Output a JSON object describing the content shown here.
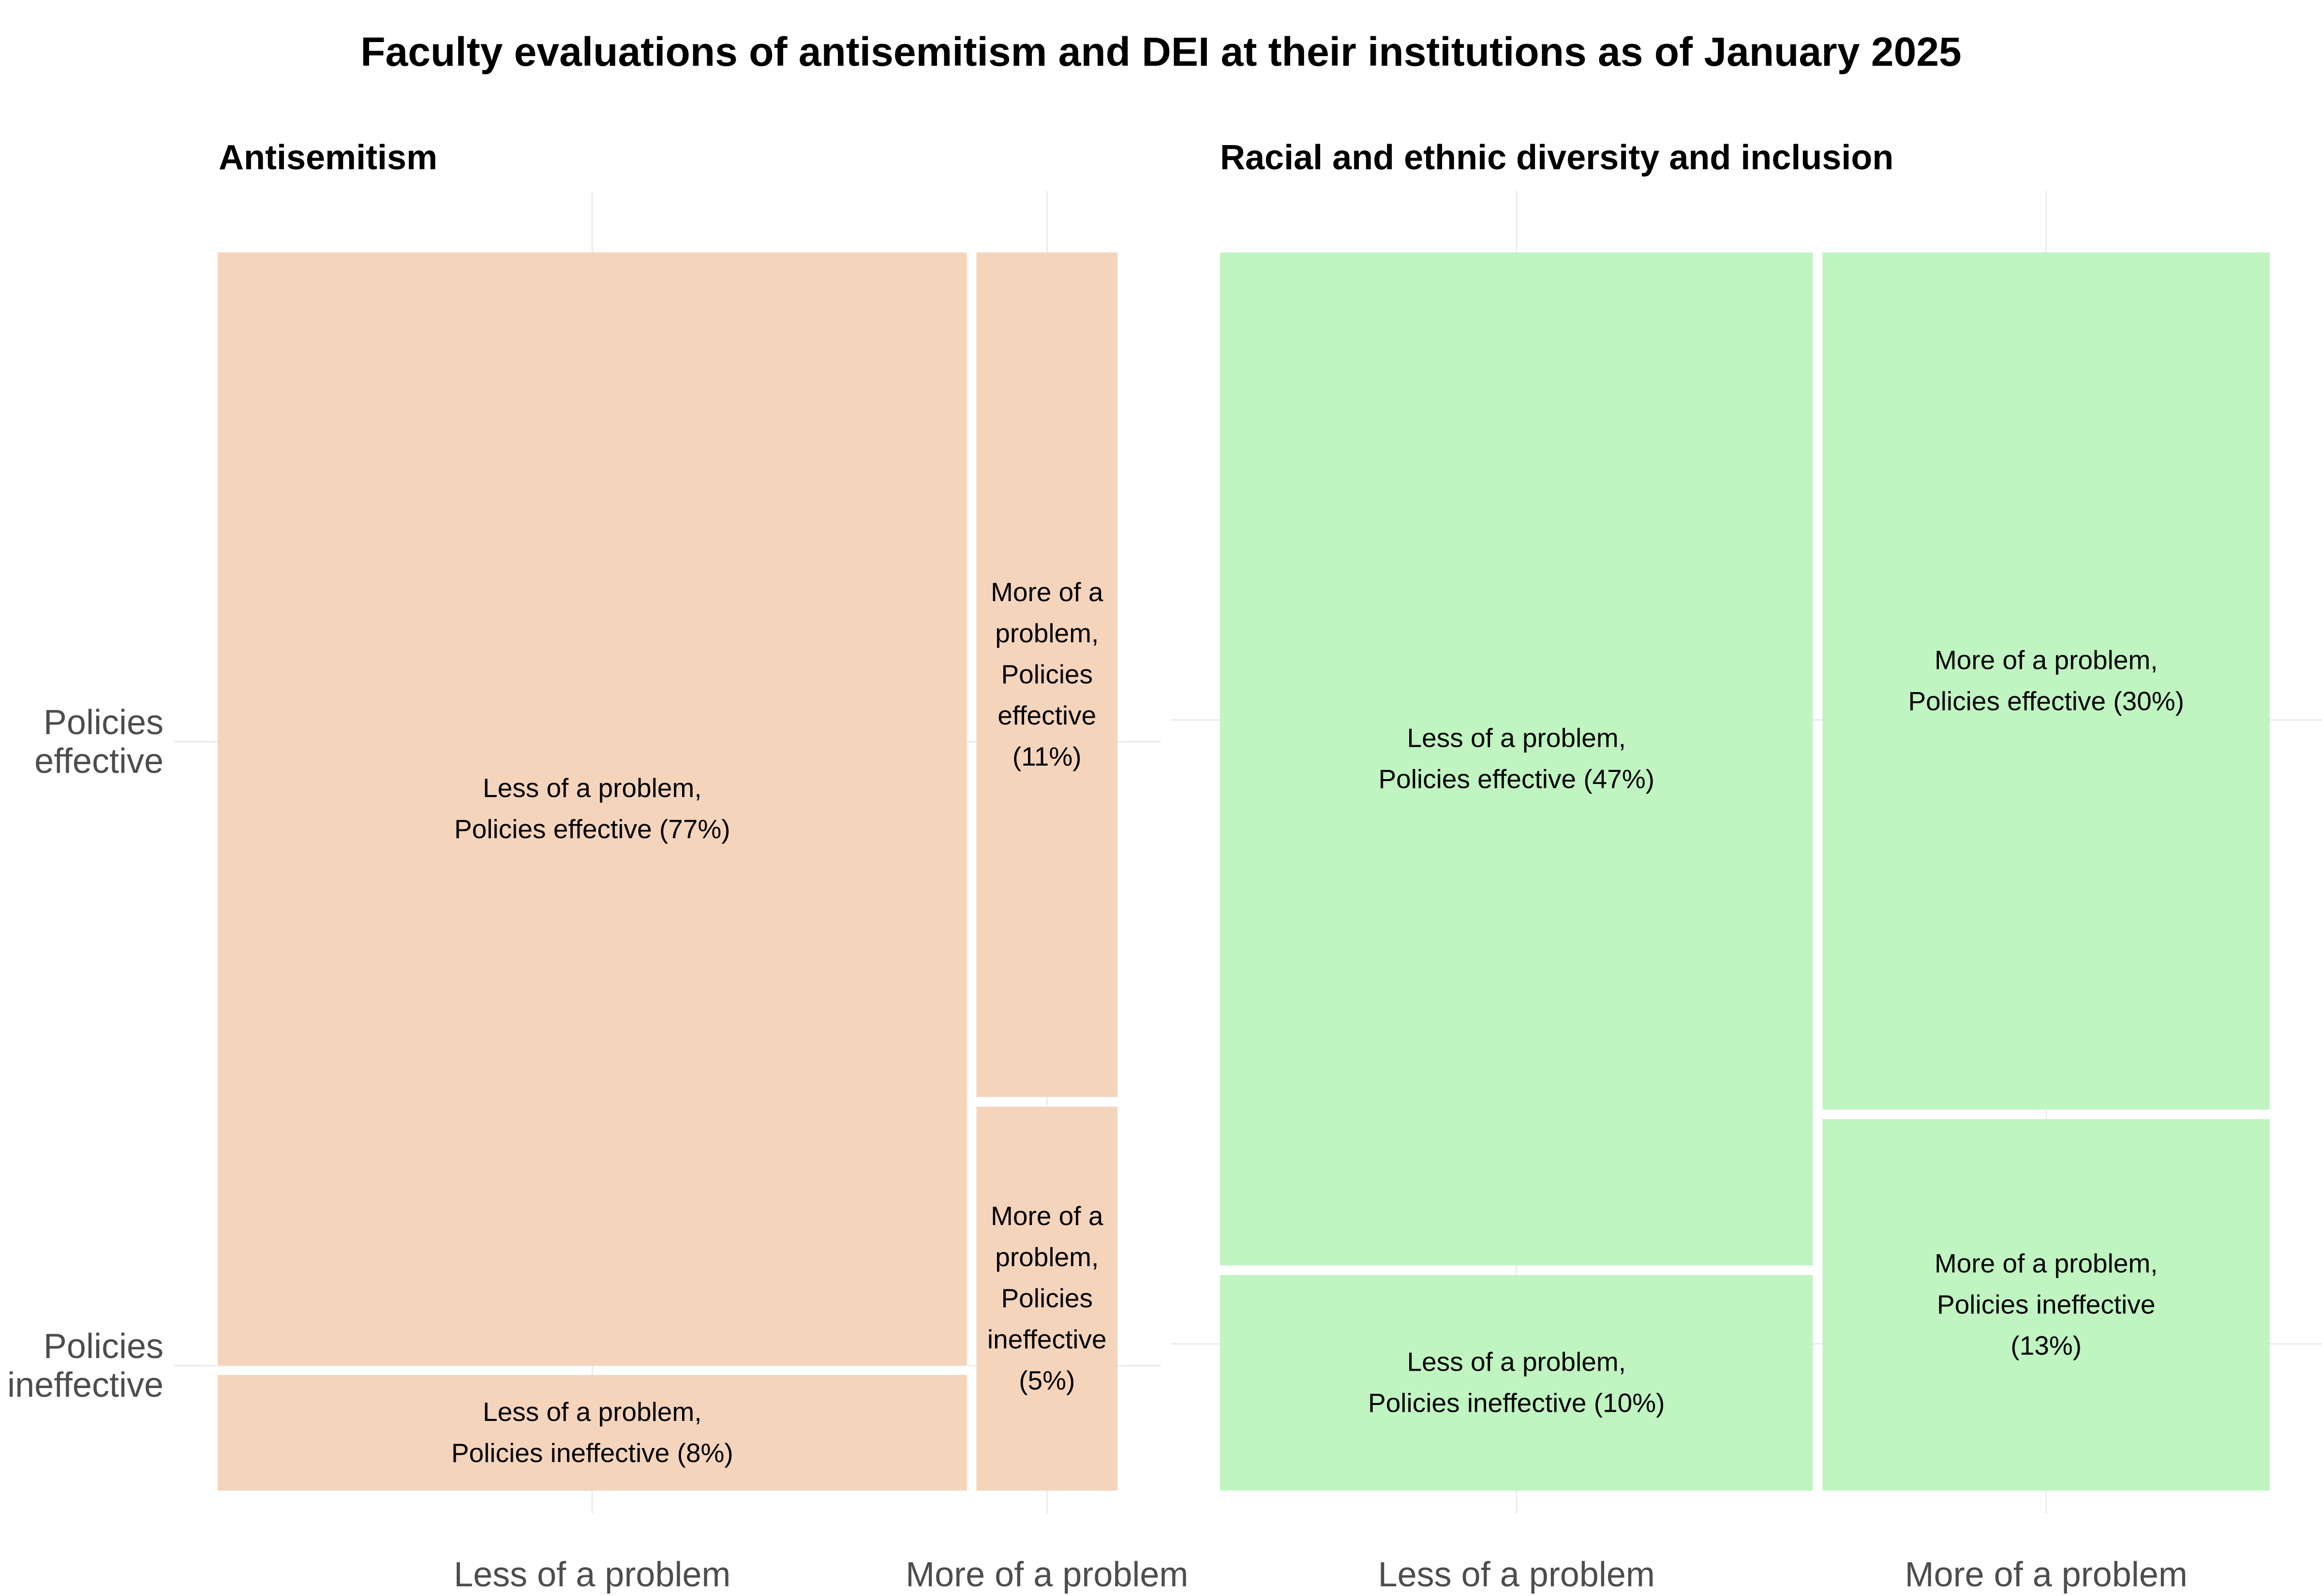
{
  "title": "Faculty evaluations of antisemitism and DEI at their institutions as of January 2025",
  "chart_data": {
    "type": "mosaic",
    "panels": [
      {
        "name": "Antisemitism",
        "fill_color": "#f4d4bb",
        "x_categories": [
          "Less of a problem",
          "More of a problem"
        ],
        "y_categories": [
          "Policies effective",
          "Policies ineffective"
        ],
        "cells": [
          {
            "x": "Less of a problem",
            "y": "Policies effective",
            "value": 77,
            "label_lines": [
              "Less of a problem,",
              "Policies effective (77%)"
            ]
          },
          {
            "x": "Less of a problem",
            "y": "Policies ineffective",
            "value": 8,
            "label_lines": [
              "Less of a problem,",
              "Policies ineffective (8%)"
            ]
          },
          {
            "x": "More of a problem",
            "y": "Policies effective",
            "value": 11,
            "label_lines": [
              "More of a",
              "problem,",
              "Policies",
              "effective",
              "(11%)"
            ]
          },
          {
            "x": "More of a problem",
            "y": "Policies ineffective",
            "value": 5,
            "label_lines": [
              "More of a",
              "problem,",
              "Policies",
              "ineffective",
              "(5%)"
            ]
          }
        ]
      },
      {
        "name": "Racial and ethnic diversity and inclusion",
        "fill_color": "#c0f4c1",
        "x_categories": [
          "Less of a problem",
          "More of a problem"
        ],
        "y_categories": [
          "Policies effective",
          "Policies ineffective"
        ],
        "cells": [
          {
            "x": "Less of a problem",
            "y": "Policies effective",
            "value": 47,
            "label_lines": [
              "Less of a problem,",
              "Policies effective (47%)"
            ]
          },
          {
            "x": "Less of a problem",
            "y": "Policies ineffective",
            "value": 10,
            "label_lines": [
              "Less of a problem,",
              "Policies ineffective (10%)"
            ]
          },
          {
            "x": "More of a problem",
            "y": "Policies effective",
            "value": 30,
            "label_lines": [
              "More of a problem,",
              "Policies effective (30%)"
            ]
          },
          {
            "x": "More of a problem",
            "y": "Policies ineffective",
            "value": 13,
            "label_lines": [
              "More of a problem,",
              "Policies ineffective",
              "(13%)"
            ]
          }
        ]
      }
    ],
    "y_axis_labels": [
      {
        "lines": [
          "Policies",
          "effective"
        ]
      },
      {
        "lines": [
          "Policies",
          "ineffective"
        ]
      }
    ],
    "grid": true,
    "legend": "none"
  }
}
